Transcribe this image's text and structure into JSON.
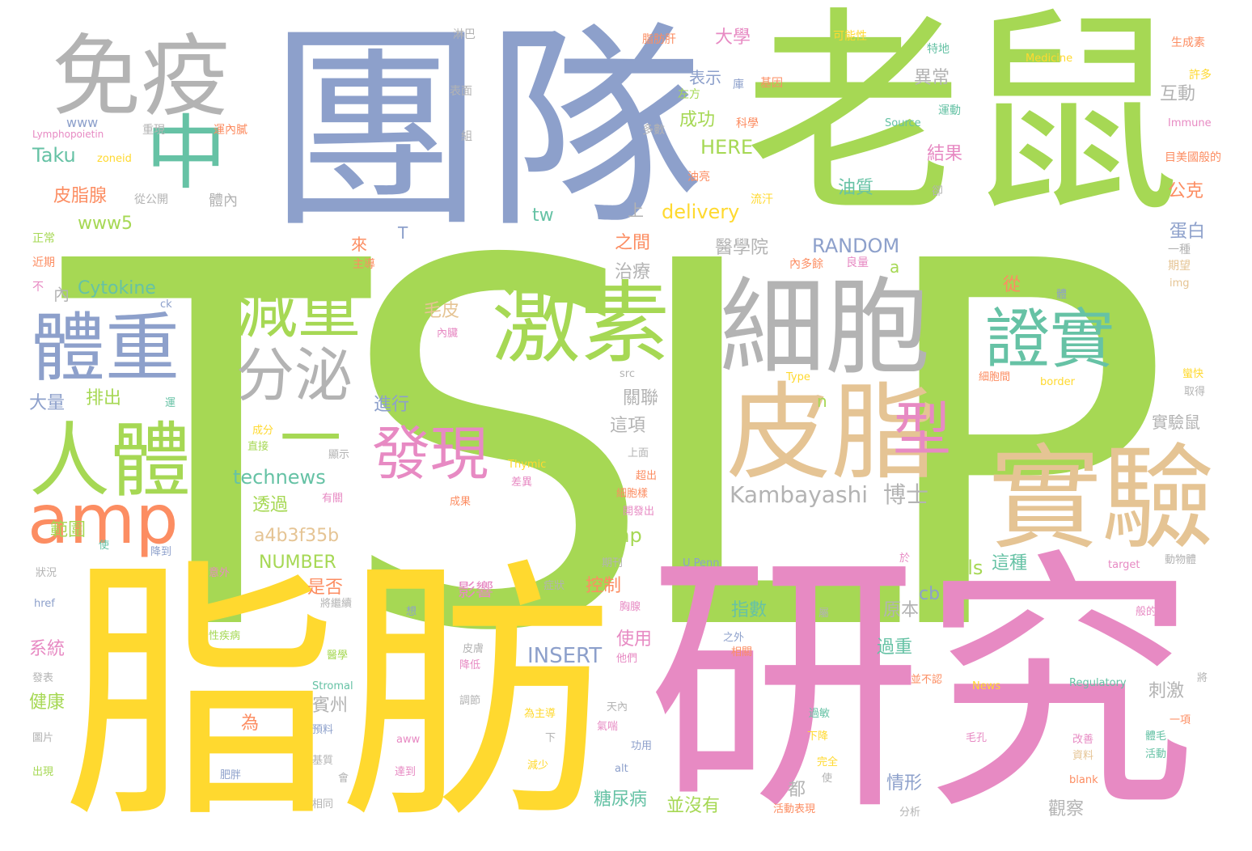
{
  "palette": {
    "green": "#a6d854",
    "blue": "#8da0cb",
    "yellow": "#ffd92f",
    "pink": "#e78ac3",
    "gray": "#b3b3b3",
    "tan": "#e5c494",
    "teal": "#66c2a5",
    "orange": "#fc8d62"
  },
  "words": [
    {
      "text": "TSLP",
      "color": "green"
    },
    {
      "text": "老鼠",
      "color": "green"
    },
    {
      "text": "團隊",
      "color": "blue"
    },
    {
      "text": "脂肪",
      "color": "yellow"
    },
    {
      "text": "研究",
      "color": "pink"
    },
    {
      "text": "免疫",
      "color": "gray"
    },
    {
      "text": "細胞",
      "color": "gray"
    },
    {
      "text": "皮脂",
      "color": "tan"
    },
    {
      "text": "實驗",
      "color": "tan"
    },
    {
      "text": "激素",
      "color": "green"
    },
    {
      "text": "體重",
      "color": "blue"
    },
    {
      "text": "中",
      "color": "teal"
    },
    {
      "text": "人體",
      "color": "green"
    },
    {
      "text": "減重",
      "color": "green"
    },
    {
      "text": "證實",
      "color": "teal"
    },
    {
      "text": "amp",
      "color": "orange"
    },
    {
      "text": "分泌",
      "color": "gray"
    },
    {
      "text": "一",
      "color": "green"
    },
    {
      "text": "發現",
      "color": "pink"
    },
    {
      "text": "型",
      "color": "pink"
    },
    {
      "text": "Kambayashi",
      "color": "gray"
    },
    {
      "text": "博士",
      "color": "gray"
    },
    {
      "text": "technews",
      "color": "teal"
    },
    {
      "text": "RANDOM",
      "color": "blue"
    },
    {
      "text": "INSERT",
      "color": "blue"
    },
    {
      "text": "NUMBER",
      "color": "green"
    },
    {
      "text": "a4b3f35b",
      "color": "tan"
    },
    {
      "text": "delivery",
      "color": "yellow"
    },
    {
      "text": "HERE",
      "color": "green"
    },
    {
      "text": "Cytokine",
      "color": "teal"
    },
    {
      "text": "www5",
      "color": "green"
    },
    {
      "text": "Taku",
      "color": "teal"
    },
    {
      "text": "www",
      "color": "blue"
    },
    {
      "text": "皮脂腺",
      "color": "orange"
    },
    {
      "text": "Cells",
      "color": "green"
    },
    {
      "text": "php",
      "color": "green"
    },
    {
      "text": "tw",
      "color": "teal"
    },
    {
      "text": "cb",
      "color": "blue"
    },
    {
      "text": "大學",
      "color": "pink"
    },
    {
      "text": "表示",
      "color": "blue"
    },
    {
      "text": "成功",
      "color": "green"
    },
    {
      "text": "異常",
      "color": "gray"
    },
    {
      "text": "互動",
      "color": "gray"
    },
    {
      "text": "結果",
      "color": "pink"
    },
    {
      "text": "油質",
      "color": "teal"
    },
    {
      "text": "公克",
      "color": "orange"
    },
    {
      "text": "蛋白",
      "color": "blue"
    },
    {
      "text": "醫學院",
      "color": "gray"
    },
    {
      "text": "治療",
      "color": "gray"
    },
    {
      "text": "之間",
      "color": "orange"
    },
    {
      "text": "毛皮",
      "color": "tan"
    },
    {
      "text": "從",
      "color": "orange"
    },
    {
      "text": "實驗鼠",
      "color": "gray"
    },
    {
      "text": "關聯",
      "color": "gray"
    },
    {
      "text": "這項",
      "color": "gray"
    },
    {
      "text": "進行",
      "color": "blue"
    },
    {
      "text": "透過",
      "color": "green"
    },
    {
      "text": "範圍",
      "color": "green"
    },
    {
      "text": "是否",
      "color": "orange"
    },
    {
      "text": "影響",
      "color": "pink"
    },
    {
      "text": "控制",
      "color": "orange"
    },
    {
      "text": "這種",
      "color": "teal"
    },
    {
      "text": "原本",
      "color": "gray"
    },
    {
      "text": "指數",
      "color": "teal"
    },
    {
      "text": "使用",
      "color": "pink"
    },
    {
      "text": "過重",
      "color": "teal"
    },
    {
      "text": "刺激",
      "color": "gray"
    },
    {
      "text": "賓州",
      "color": "gray"
    },
    {
      "text": "為",
      "color": "orange"
    },
    {
      "text": "糖尿病",
      "color": "teal"
    },
    {
      "text": "並沒有",
      "color": "green"
    },
    {
      "text": "情形",
      "color": "blue"
    },
    {
      "text": "觀察",
      "color": "gray"
    },
    {
      "text": "都",
      "color": "gray"
    },
    {
      "text": "健康",
      "color": "green"
    },
    {
      "text": "系統",
      "color": "pink"
    },
    {
      "text": "大量",
      "color": "blue"
    },
    {
      "text": "排出",
      "color": "green"
    },
    {
      "text": "體內",
      "color": "gray"
    },
    {
      "text": "上",
      "color": "gray"
    },
    {
      "text": "來",
      "color": "orange"
    },
    {
      "text": "T",
      "color": "blue"
    },
    {
      "text": "a",
      "color": "green"
    },
    {
      "text": "n",
      "color": "green"
    },
    {
      "text": "內",
      "color": "gray"
    },
    {
      "text": "淋巴",
      "color": "gray"
    },
    {
      "text": "脂肪肝",
      "color": "orange"
    },
    {
      "text": "可能性",
      "color": "yellow"
    },
    {
      "text": "特地",
      "color": "teal"
    },
    {
      "text": "生成素",
      "color": "orange"
    },
    {
      "text": "Medicine",
      "color": "yellow"
    },
    {
      "text": "許多",
      "color": "yellow"
    },
    {
      "text": "表面",
      "color": "gray"
    },
    {
      "text": "基因",
      "color": "orange"
    },
    {
      "text": "庫",
      "color": "blue"
    },
    {
      "text": "左方",
      "color": "green"
    },
    {
      "text": "運動",
      "color": "teal"
    },
    {
      "text": "Source",
      "color": "teal"
    },
    {
      "text": "Immune",
      "color": "pink"
    },
    {
      "text": "重現",
      "color": "gray"
    },
    {
      "text": "運內膩",
      "color": "orange"
    },
    {
      "text": "多數",
      "color": "gray"
    },
    {
      "text": "科學",
      "color": "orange"
    },
    {
      "text": "Lymphopoietin",
      "color": "pink"
    },
    {
      "text": "組",
      "color": "gray"
    },
    {
      "text": "zoneid",
      "color": "yellow"
    },
    {
      "text": "油亮",
      "color": "orange"
    },
    {
      "text": "卻",
      "color": "gray"
    },
    {
      "text": "目美國般的",
      "color": "orange"
    },
    {
      "text": "從公開",
      "color": "gray"
    },
    {
      "text": "流汗",
      "color": "yellow"
    },
    {
      "text": "正常",
      "color": "green"
    },
    {
      "text": "近期",
      "color": "orange"
    },
    {
      "text": "主導",
      "color": "orange"
    },
    {
      "text": "內多餘",
      "color": "orange"
    },
    {
      "text": "良量",
      "color": "pink"
    },
    {
      "text": "一種",
      "color": "gray"
    },
    {
      "text": "期望",
      "color": "tan"
    },
    {
      "text": "img",
      "color": "tan"
    },
    {
      "text": "不",
      "color": "pink"
    },
    {
      "text": "ck",
      "color": "blue"
    },
    {
      "text": "內臟",
      "color": "pink"
    },
    {
      "text": "體",
      "color": "blue"
    },
    {
      "text": "src",
      "color": "gray"
    },
    {
      "text": "Type",
      "color": "yellow"
    },
    {
      "text": "細胞間",
      "color": "orange"
    },
    {
      "text": "border",
      "color": "yellow"
    },
    {
      "text": "蠻快",
      "color": "yellow"
    },
    {
      "text": "取得",
      "color": "gray"
    },
    {
      "text": "運",
      "color": "teal"
    },
    {
      "text": "成分",
      "color": "yellow"
    },
    {
      "text": "直接",
      "color": "green"
    },
    {
      "text": "顯示",
      "color": "gray"
    },
    {
      "text": "Thymic",
      "color": "yellow"
    },
    {
      "text": "差異",
      "color": "pink"
    },
    {
      "text": "細胞樣",
      "color": "orange"
    },
    {
      "text": "超出",
      "color": "orange"
    },
    {
      "text": "開發出",
      "color": "pink"
    },
    {
      "text": "上面",
      "color": "gray"
    },
    {
      "text": "有關",
      "color": "pink"
    },
    {
      "text": "成果",
      "color": "orange"
    },
    {
      "text": "使",
      "color": "teal"
    },
    {
      "text": "降到",
      "color": "blue"
    },
    {
      "text": "狀況",
      "color": "gray"
    },
    {
      "text": "意外",
      "color": "pink"
    },
    {
      "text": "期刊",
      "color": "gray"
    },
    {
      "text": "症狀",
      "color": "gray"
    },
    {
      "text": "U Penn",
      "color": "blue"
    },
    {
      "text": "於",
      "color": "pink"
    },
    {
      "text": "target",
      "color": "pink"
    },
    {
      "text": "動物體",
      "color": "gray"
    },
    {
      "text": "href",
      "color": "blue"
    },
    {
      "text": "將繼續",
      "color": "gray"
    },
    {
      "text": "想",
      "color": "blue"
    },
    {
      "text": "胸腺",
      "color": "pink"
    },
    {
      "text": "屬",
      "color": "gray"
    },
    {
      "text": "般的",
      "color": "pink"
    },
    {
      "text": "性疾病",
      "color": "green"
    },
    {
      "text": "醫學",
      "color": "green"
    },
    {
      "text": "皮膚",
      "color": "gray"
    },
    {
      "text": "之外",
      "color": "blue"
    },
    {
      "text": "相關",
      "color": "orange"
    },
    {
      "text": "降低",
      "color": "pink"
    },
    {
      "text": "他們",
      "color": "pink"
    },
    {
      "text": "並不認",
      "color": "orange"
    },
    {
      "text": "將",
      "color": "gray"
    },
    {
      "text": "發表",
      "color": "gray"
    },
    {
      "text": "Stromal",
      "color": "teal"
    },
    {
      "text": "News",
      "color": "yellow"
    },
    {
      "text": "Regulatory",
      "color": "teal"
    },
    {
      "text": "圖片",
      "color": "gray"
    },
    {
      "text": "調節",
      "color": "gray"
    },
    {
      "text": "為主導",
      "color": "yellow"
    },
    {
      "text": "天內",
      "color": "gray"
    },
    {
      "text": "過敏",
      "color": "teal"
    },
    {
      "text": "一項",
      "color": "orange"
    },
    {
      "text": "預料",
      "color": "blue"
    },
    {
      "text": "氣喘",
      "color": "pink"
    },
    {
      "text": "下降",
      "color": "yellow"
    },
    {
      "text": "毛孔",
      "color": "pink"
    },
    {
      "text": "體毛",
      "color": "teal"
    },
    {
      "text": "aww",
      "color": "pink"
    },
    {
      "text": "下",
      "color": "gray"
    },
    {
      "text": "功用",
      "color": "blue"
    },
    {
      "text": "改善",
      "color": "pink"
    },
    {
      "text": "活動",
      "color": "teal"
    },
    {
      "text": "基質",
      "color": "gray"
    },
    {
      "text": "減少",
      "color": "yellow"
    },
    {
      "text": "alt",
      "color": "blue"
    },
    {
      "text": "完全",
      "color": "yellow"
    },
    {
      "text": "資料",
      "color": "tan"
    },
    {
      "text": "出現",
      "color": "green"
    },
    {
      "text": "肥胖",
      "color": "blue"
    },
    {
      "text": "會",
      "color": "gray"
    },
    {
      "text": "達到",
      "color": "pink"
    },
    {
      "text": "使",
      "color": "gray"
    },
    {
      "text": "blank",
      "color": "orange"
    },
    {
      "text": "相同",
      "color": "gray"
    },
    {
      "text": "活動表現",
      "color": "orange"
    },
    {
      "text": "分析",
      "color": "gray"
    }
  ]
}
